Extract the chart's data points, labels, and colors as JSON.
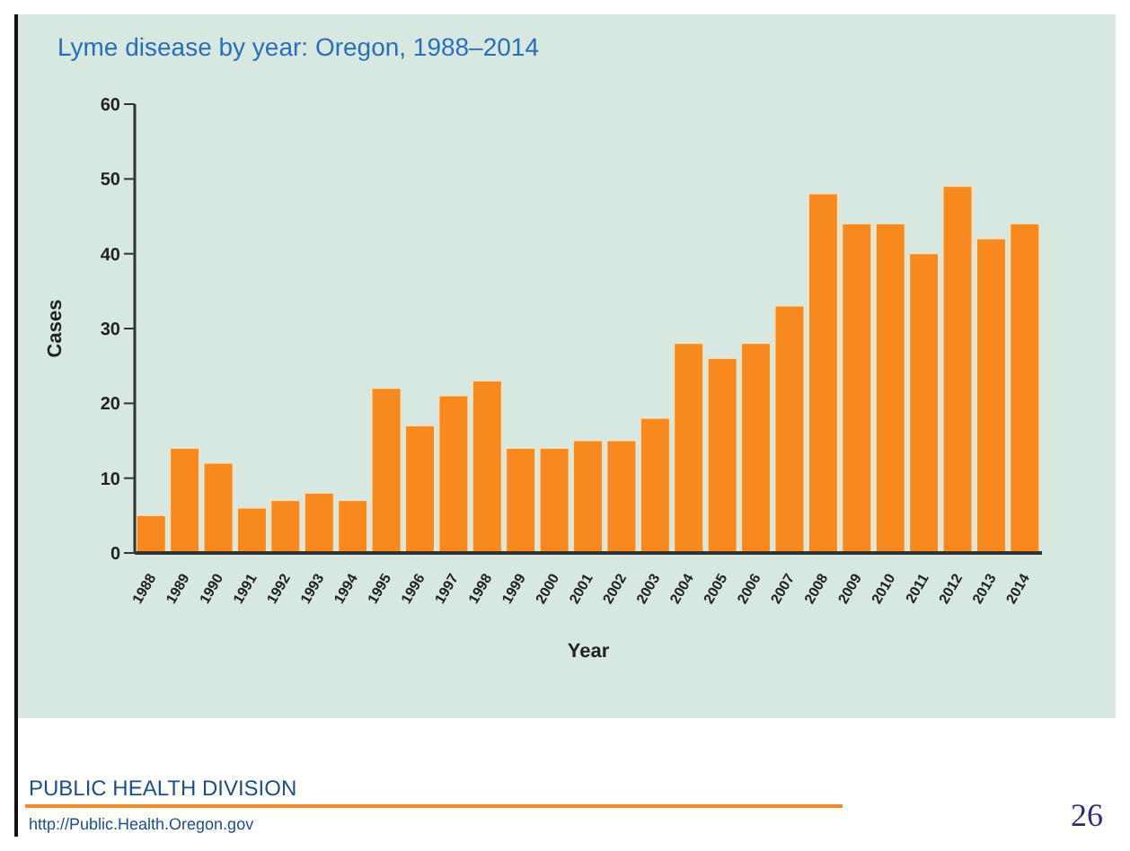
{
  "chart_data": {
    "type": "bar",
    "title": "Lyme disease by year: Oregon, 1988–2014",
    "xlabel": "Year",
    "ylabel": "Cases",
    "categories": [
      "1988",
      "1989",
      "1990",
      "1991",
      "1992",
      "1993",
      "1994",
      "1995",
      "1996",
      "1997",
      "1998",
      "1999",
      "2000",
      "2001",
      "2002",
      "2003",
      "2004",
      "2005",
      "2006",
      "2007",
      "2008",
      "2009",
      "2010",
      "2011",
      "2012",
      "2013",
      "2014"
    ],
    "values": [
      5,
      14,
      12,
      6,
      7,
      8,
      7,
      22,
      17,
      21,
      23,
      14,
      14,
      15,
      15,
      18,
      28,
      26,
      28,
      33,
      48,
      44,
      44,
      40,
      49,
      42,
      44
    ],
    "color": "#f7891f",
    "ylim": [
      0,
      60
    ],
    "yticks": [
      0,
      10,
      20,
      30,
      40,
      50,
      60
    ],
    "grid": false,
    "legend": false,
    "annotations": [
      "PUBLIC HEALTH DIVISION",
      "http://Public.Health.Oregon.gov",
      "26"
    ]
  }
}
